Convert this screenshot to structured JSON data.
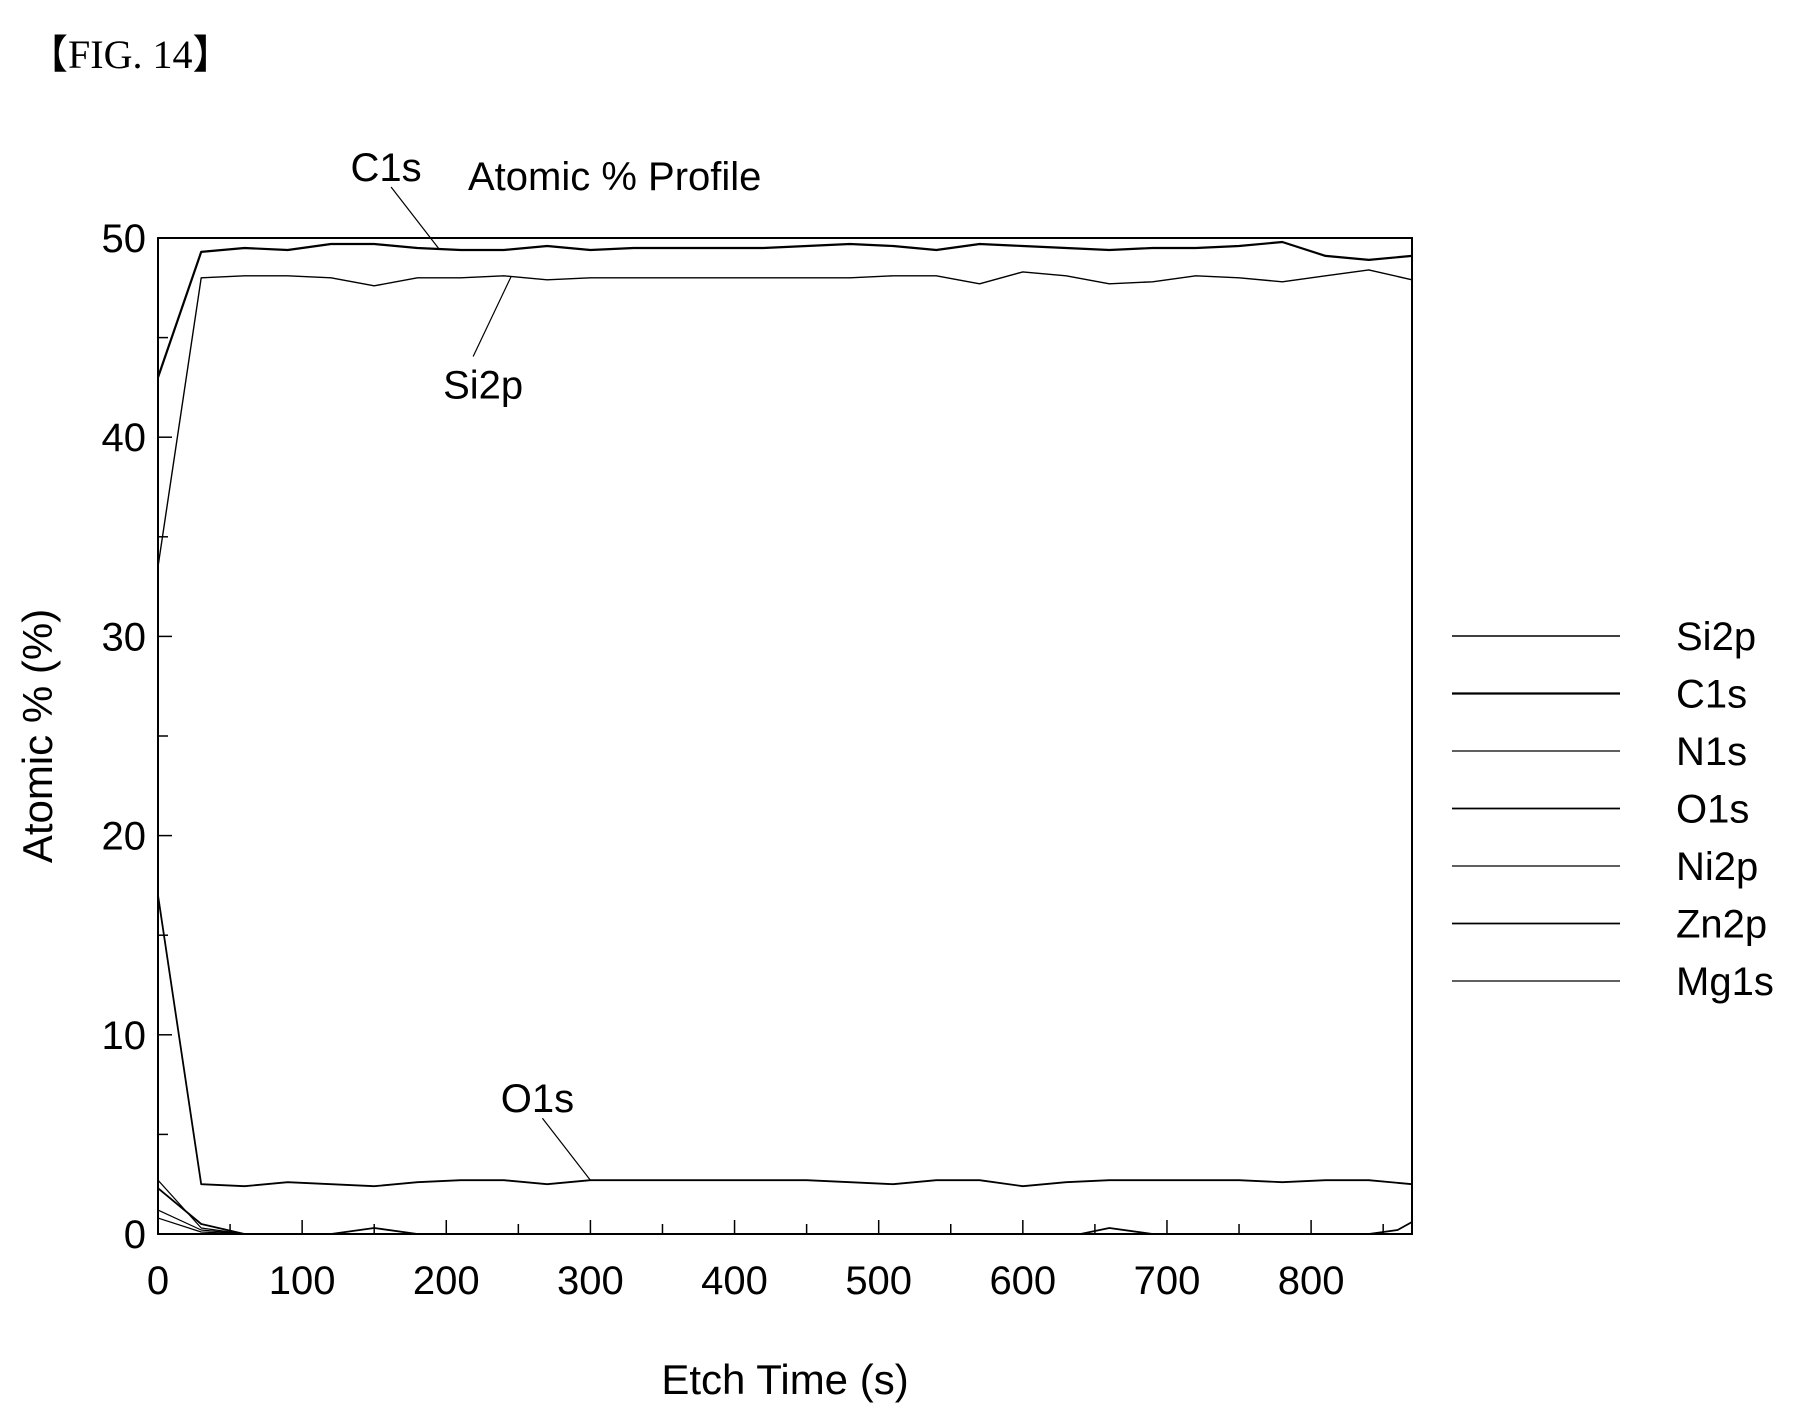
{
  "figure_label": "【FIG. 14】",
  "chart_data": {
    "type": "line",
    "title": "Atomic % Profile",
    "xlabel": "Etch Time (s)",
    "ylabel": "Atomic % (%)",
    "xlim": [
      0,
      870
    ],
    "ylim": [
      0,
      50
    ],
    "x_ticks": [
      0,
      100,
      200,
      300,
      400,
      500,
      600,
      700,
      800
    ],
    "x_minor_step": 50,
    "y_ticks": [
      0,
      10,
      20,
      30,
      40,
      50
    ],
    "y_minor_step": 5,
    "grid": false,
    "legend_position": "right",
    "series": [
      {
        "name": "Si2p",
        "color": "#000000",
        "width": 1.4,
        "x": [
          0,
          30,
          60,
          90,
          120,
          150,
          180,
          210,
          240,
          270,
          300,
          330,
          360,
          390,
          420,
          450,
          480,
          510,
          540,
          570,
          600,
          630,
          660,
          690,
          720,
          750,
          780,
          810,
          840,
          870
        ],
        "y": [
          33.5,
          48.0,
          48.1,
          48.1,
          48.0,
          47.6,
          48.0,
          48.0,
          48.1,
          47.9,
          48.0,
          48.0,
          48.0,
          48.0,
          48.0,
          48.0,
          48.0,
          48.1,
          48.1,
          47.7,
          48.3,
          48.1,
          47.7,
          47.8,
          48.1,
          48.0,
          47.8,
          48.1,
          48.4,
          47.9
        ]
      },
      {
        "name": "C1s",
        "color": "#000000",
        "width": 2.2,
        "x": [
          0,
          30,
          60,
          90,
          120,
          150,
          180,
          210,
          240,
          270,
          300,
          330,
          360,
          390,
          420,
          450,
          480,
          510,
          540,
          570,
          600,
          630,
          660,
          690,
          720,
          750,
          780,
          810,
          840,
          870
        ],
        "y": [
          43.0,
          49.3,
          49.5,
          49.4,
          49.7,
          49.7,
          49.5,
          49.4,
          49.4,
          49.6,
          49.4,
          49.5,
          49.5,
          49.5,
          49.5,
          49.6,
          49.7,
          49.6,
          49.4,
          49.7,
          49.6,
          49.5,
          49.4,
          49.5,
          49.5,
          49.6,
          49.8,
          49.1,
          48.9,
          49.1
        ]
      },
      {
        "name": "N1s",
        "color": "#000000",
        "width": 1.2,
        "x": [
          0,
          30,
          60,
          870
        ],
        "y": [
          1.2,
          0.2,
          0.0,
          0.0
        ]
      },
      {
        "name": "O1s",
        "color": "#000000",
        "width": 1.8,
        "x": [
          0,
          30,
          60,
          90,
          120,
          150,
          180,
          210,
          240,
          270,
          300,
          330,
          360,
          390,
          420,
          450,
          480,
          510,
          540,
          570,
          600,
          630,
          660,
          690,
          720,
          750,
          780,
          810,
          840,
          870
        ],
        "y": [
          17.0,
          2.5,
          2.4,
          2.6,
          2.5,
          2.4,
          2.6,
          2.7,
          2.7,
          2.5,
          2.7,
          2.7,
          2.7,
          2.7,
          2.7,
          2.7,
          2.6,
          2.5,
          2.7,
          2.7,
          2.4,
          2.6,
          2.7,
          2.7,
          2.7,
          2.7,
          2.6,
          2.7,
          2.7,
          2.5
        ]
      },
      {
        "name": "Ni2p",
        "color": "#000000",
        "width": 1.2,
        "x": [
          0,
          30,
          60,
          870
        ],
        "y": [
          2.7,
          0.3,
          0.0,
          0.0
        ]
      },
      {
        "name": "Zn2p",
        "color": "#000000",
        "width": 1.8,
        "x": [
          0,
          30,
          60,
          120,
          150,
          180,
          600,
          640,
          660,
          690,
          840,
          860,
          870
        ],
        "y": [
          2.3,
          0.5,
          0.0,
          0.0,
          0.3,
          0.0,
          0.0,
          0.0,
          0.3,
          0.0,
          0.0,
          0.2,
          0.6
        ]
      },
      {
        "name": "Mg1s",
        "color": "#000000",
        "width": 1.2,
        "x": [
          0,
          30,
          60,
          870
        ],
        "y": [
          0.8,
          0.1,
          0.0,
          0.0
        ]
      }
    ],
    "annotations": [
      {
        "text": "C1s",
        "series": "C1s",
        "at_x": 195,
        "label_pos": "above"
      },
      {
        "text": "Si2p",
        "series": "Si2p",
        "at_x": 245,
        "label_pos": "below"
      },
      {
        "text": "O1s",
        "series": "O1s",
        "at_x": 300,
        "label_pos": "above"
      }
    ]
  }
}
